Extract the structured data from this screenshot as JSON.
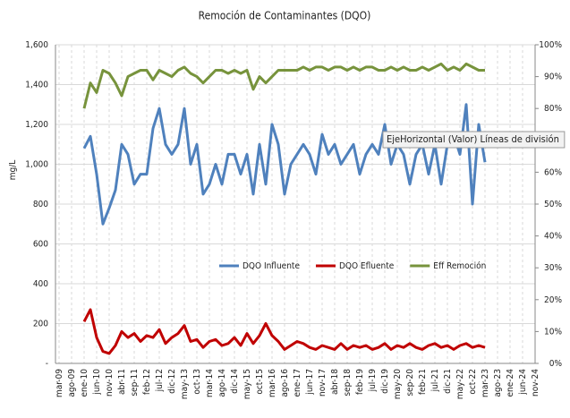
{
  "chart_data": {
    "type": "line",
    "title": "Remoción de Contaminantes (DQO)",
    "y_label": "mg/L",
    "tooltip": "EjeHorizontal (Valor)  Líneas de división",
    "categories": [
      "mar-09",
      null,
      "ago-09",
      null,
      "ene-10",
      null,
      "jun-10",
      null,
      "nov-10",
      null,
      "abr-11",
      null,
      "sep-11",
      null,
      "feb-12",
      null,
      "jul-12",
      null,
      "dic-12",
      null,
      "may-13",
      null,
      "oct-13",
      null,
      "mar-14",
      null,
      "ago-14",
      null,
      "dic-14",
      null,
      "may-15",
      null,
      "oct-15",
      null,
      "mar-16",
      null,
      "ago-16",
      null,
      "ene-17",
      null,
      "jun-17",
      null,
      "nov-17",
      null,
      "abr-18",
      null,
      "sep-18",
      null,
      "feb-19",
      null,
      "jul-19",
      null,
      "dic-19",
      null,
      "may-20",
      null,
      "sep-20",
      null,
      "feb-21",
      null,
      "jul-21",
      null,
      "dic-21",
      null,
      "may-22",
      null,
      "oct-22",
      null,
      "mar-23",
      null,
      "ago-23",
      null,
      "ene-24",
      null,
      "jun-24",
      null,
      "nov-24"
    ],
    "series": [
      {
        "name": "DQO Influente",
        "color": "#4f81bd",
        "values": [
          null,
          null,
          null,
          null,
          1080,
          1140,
          950,
          700,
          780,
          870,
          1100,
          1050,
          900,
          950,
          950,
          1180,
          1280,
          1100,
          1050,
          1100,
          1280,
          1000,
          1100,
          850,
          900,
          1000,
          900,
          1050,
          1050,
          950,
          1050,
          850,
          1100,
          900,
          1200,
          1100,
          850,
          1000,
          1050,
          1100,
          1050,
          950,
          1150,
          1050,
          1100,
          1000,
          1050,
          1100,
          950,
          1050,
          1100,
          1050,
          1200,
          1000,
          1100,
          1050,
          900,
          1050,
          1100,
          950,
          1100,
          900,
          1100,
          1150,
          1050,
          1300,
          800,
          1200,
          1010,
          null,
          null,
          null,
          null,
          null,
          null,
          null,
          null
        ]
      },
      {
        "name": "DQO Efluente",
        "color": "#c00000",
        "values": [
          null,
          null,
          null,
          null,
          210,
          270,
          130,
          60,
          50,
          90,
          160,
          130,
          150,
          110,
          140,
          130,
          170,
          100,
          130,
          150,
          190,
          110,
          120,
          80,
          110,
          120,
          90,
          100,
          130,
          90,
          150,
          100,
          140,
          200,
          140,
          110,
          70,
          90,
          110,
          100,
          80,
          70,
          90,
          80,
          70,
          100,
          70,
          90,
          80,
          90,
          70,
          80,
          100,
          70,
          90,
          80,
          100,
          80,
          70,
          90,
          100,
          80,
          90,
          70,
          90,
          100,
          80,
          90,
          80,
          null,
          null,
          null,
          null,
          null,
          null,
          null,
          null
        ]
      },
      {
        "name": "Eff Remoción",
        "color": "#77933c",
        "axis": "y2",
        "values": [
          null,
          null,
          null,
          null,
          80,
          88,
          85,
          92,
          91,
          88,
          84,
          90,
          91,
          92,
          92,
          89,
          92,
          91,
          90,
          92,
          93,
          91,
          90,
          88,
          90,
          92,
          92,
          91,
          92,
          91,
          92,
          86,
          90,
          88,
          90,
          92,
          92,
          92,
          92,
          93,
          92,
          93,
          93,
          92,
          93,
          93,
          92,
          93,
          92,
          93,
          93,
          92,
          92,
          93,
          92,
          93,
          92,
          92,
          93,
          92,
          93,
          94,
          92,
          93,
          92,
          94,
          93,
          92,
          92,
          null,
          null,
          null,
          null,
          null,
          null,
          null,
          null
        ]
      }
    ],
    "ylim": [
      0,
      1600
    ],
    "yticks": [
      {
        "value": 0,
        "label": "-"
      },
      200,
      400,
      600,
      800,
      {
        "value": 1000,
        "label": "1,000"
      },
      {
        "value": 1200,
        "label": "1,200"
      },
      {
        "value": 1400,
        "label": "1,400"
      },
      {
        "value": 1600,
        "label": "1,600"
      }
    ],
    "y2lim": [
      0,
      100
    ],
    "y2ticks": [
      {
        "value": 0,
        "label": "0%"
      },
      {
        "value": 10,
        "label": "10%"
      },
      {
        "value": 20,
        "label": "20%"
      },
      {
        "value": 30,
        "label": "30%"
      },
      {
        "value": 40,
        "label": "40%"
      },
      {
        "value": 50,
        "label": "50%"
      },
      {
        "value": 60,
        "label": "60%"
      },
      {
        "value": 70,
        "label": "70%"
      },
      {
        "value": 80,
        "label": "80%"
      },
      {
        "value": 90,
        "label": "90%"
      },
      {
        "value": 100,
        "label": "100%"
      }
    ],
    "grid": true
  }
}
